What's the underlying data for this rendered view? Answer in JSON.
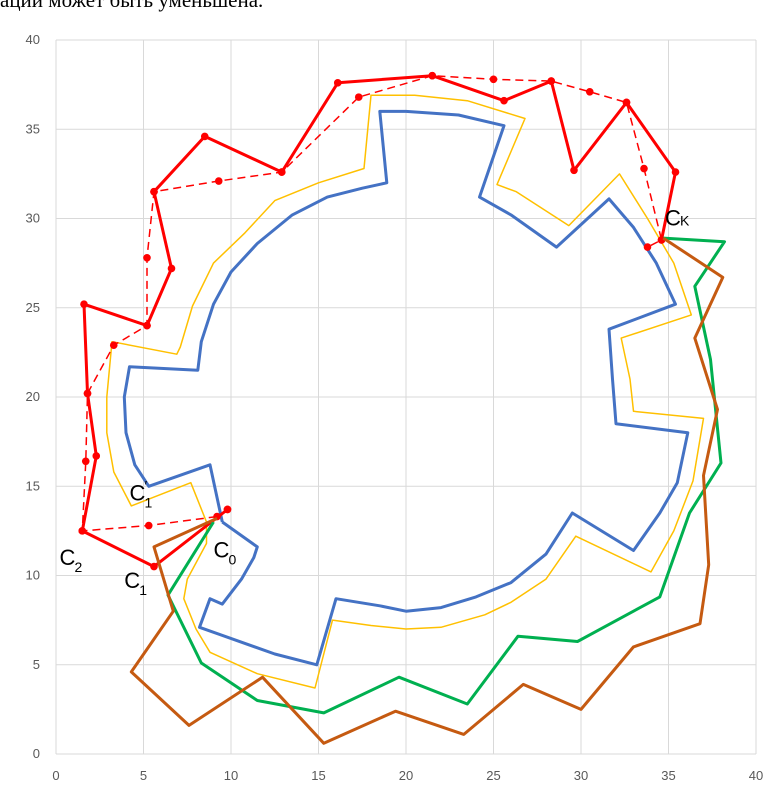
{
  "caption": "ации может быть уменьшена.",
  "chart_data": {
    "type": "line",
    "title": "",
    "xlabel": "",
    "ylabel": "",
    "xlim": [
      0,
      40
    ],
    "ylim": [
      0,
      40
    ],
    "x_ticks": [
      0,
      5,
      10,
      15,
      20,
      25,
      30,
      35,
      40
    ],
    "y_ticks": [
      0,
      5,
      10,
      15,
      20,
      25,
      30,
      35,
      40
    ],
    "grid": true,
    "colors": {
      "blue": "#4472C4",
      "yellow": "#FFC000",
      "red": "#FF0000",
      "green": "#00B050",
      "brown": "#C55A11",
      "grid": "#D9D9D9"
    },
    "series": [
      {
        "key": "blue",
        "style": "solid",
        "points": [
          [
            9.5,
            13.0
          ],
          [
            11.5,
            11.6
          ],
          [
            11.3,
            11.0
          ],
          [
            10.6,
            9.8
          ],
          [
            9.5,
            8.4
          ],
          [
            8.8,
            8.7
          ],
          [
            8.2,
            7.1
          ],
          [
            12.5,
            5.6
          ],
          [
            14.9,
            5.0
          ],
          [
            16.0,
            8.7
          ],
          [
            18.5,
            8.3
          ],
          [
            20.0,
            8.0
          ],
          [
            22.0,
            8.2
          ],
          [
            24.0,
            8.8
          ],
          [
            26.0,
            9.6
          ],
          [
            28.0,
            11.2
          ],
          [
            29.5,
            13.5
          ],
          [
            33.0,
            11.4
          ],
          [
            34.5,
            13.5
          ],
          [
            35.5,
            15.2
          ],
          [
            36.1,
            18.0
          ],
          [
            32.0,
            18.5
          ],
          [
            31.8,
            21.0
          ],
          [
            31.6,
            23.8
          ],
          [
            35.4,
            25.2
          ],
          [
            34.3,
            27.5
          ],
          [
            33.0,
            29.5
          ],
          [
            31.6,
            31.1
          ],
          [
            28.6,
            28.4
          ],
          [
            26.0,
            30.2
          ],
          [
            24.2,
            31.2
          ],
          [
            25.6,
            35.2
          ],
          [
            23.0,
            35.8
          ],
          [
            20.0,
            36.0
          ],
          [
            18.5,
            36.0
          ],
          [
            18.9,
            32.0
          ],
          [
            17.5,
            31.7
          ],
          [
            15.5,
            31.2
          ],
          [
            13.5,
            30.2
          ],
          [
            11.5,
            28.6
          ],
          [
            10.0,
            27.0
          ],
          [
            9.0,
            25.2
          ],
          [
            8.3,
            23.1
          ],
          [
            8.1,
            21.5
          ],
          [
            4.2,
            21.7
          ],
          [
            3.9,
            20.0
          ],
          [
            4.0,
            18.0
          ],
          [
            4.5,
            16.2
          ],
          [
            5.3,
            15.0
          ],
          [
            8.8,
            16.2
          ],
          [
            9.5,
            13.0
          ]
        ]
      },
      {
        "key": "yellow",
        "style": "solid",
        "points": [
          [
            8.6,
            13.0
          ],
          [
            8.6,
            11.8
          ],
          [
            7.5,
            9.8
          ],
          [
            7.3,
            8.7
          ],
          [
            8.0,
            7.0
          ],
          [
            8.8,
            5.7
          ],
          [
            11.5,
            4.5
          ],
          [
            14.8,
            3.7
          ],
          [
            15.8,
            7.5
          ],
          [
            18.0,
            7.2
          ],
          [
            20.0,
            7.0
          ],
          [
            22.0,
            7.1
          ],
          [
            24.5,
            7.8
          ],
          [
            26.0,
            8.5
          ],
          [
            28.0,
            9.8
          ],
          [
            29.7,
            12.2
          ],
          [
            34.0,
            10.2
          ],
          [
            35.3,
            12.5
          ],
          [
            36.4,
            15.3
          ],
          [
            37.0,
            18.8
          ],
          [
            33.0,
            19.2
          ],
          [
            32.8,
            21.0
          ],
          [
            32.3,
            23.3
          ],
          [
            36.3,
            24.6
          ],
          [
            35.3,
            27.5
          ],
          [
            33.8,
            30.0
          ],
          [
            32.2,
            32.5
          ],
          [
            29.3,
            29.6
          ],
          [
            26.3,
            31.5
          ],
          [
            25.2,
            31.9
          ],
          [
            26.8,
            35.6
          ],
          [
            23.5,
            36.6
          ],
          [
            20.5,
            36.9
          ],
          [
            18.0,
            36.9
          ],
          [
            17.6,
            32.8
          ],
          [
            15.0,
            32.0
          ],
          [
            12.5,
            31.0
          ],
          [
            10.8,
            29.2
          ],
          [
            9.0,
            27.5
          ],
          [
            7.8,
            25.1
          ],
          [
            7.1,
            22.8
          ],
          [
            6.9,
            22.4
          ],
          [
            3.2,
            23.1
          ],
          [
            2.9,
            20.0
          ],
          [
            2.9,
            18.0
          ],
          [
            3.3,
            15.8
          ],
          [
            4.3,
            13.9
          ],
          [
            7.7,
            15.2
          ],
          [
            8.6,
            13.0
          ]
        ]
      },
      {
        "key": "red",
        "style": "solid",
        "markers": true,
        "points": [
          [
            9.8,
            13.7
          ],
          [
            5.6,
            10.5
          ],
          [
            1.5,
            12.5
          ],
          [
            2.3,
            16.7
          ],
          [
            1.8,
            20.2
          ],
          [
            1.6,
            25.2
          ],
          [
            5.2,
            24.0
          ],
          [
            6.6,
            27.2
          ],
          [
            5.6,
            31.5
          ],
          [
            8.5,
            34.6
          ],
          [
            12.9,
            32.6
          ],
          [
            16.1,
            37.6
          ],
          [
            21.5,
            38.0
          ],
          [
            25.6,
            36.6
          ],
          [
            28.3,
            37.7
          ],
          [
            29.6,
            32.7
          ],
          [
            32.6,
            36.5
          ],
          [
            35.4,
            32.6
          ],
          [
            34.6,
            28.8
          ]
        ]
      },
      {
        "key": "red",
        "style": "dashed",
        "markers": true,
        "points": [
          [
            9.8,
            13.7
          ],
          [
            9.2,
            13.3
          ],
          [
            5.3,
            12.8
          ],
          [
            1.5,
            12.5
          ],
          [
            1.7,
            16.4
          ],
          [
            1.8,
            20.2
          ],
          [
            3.3,
            22.9
          ],
          [
            5.2,
            24.0
          ],
          [
            5.2,
            27.8
          ],
          [
            5.6,
            31.5
          ],
          [
            9.3,
            32.1
          ],
          [
            12.9,
            32.6
          ],
          [
            17.3,
            36.8
          ],
          [
            21.5,
            38.0
          ],
          [
            25.0,
            37.8
          ],
          [
            28.3,
            37.7
          ],
          [
            30.5,
            37.1
          ],
          [
            32.6,
            36.5
          ],
          [
            33.6,
            32.8
          ],
          [
            34.6,
            28.8
          ],
          [
            33.8,
            28.4
          ]
        ]
      },
      {
        "key": "green",
        "style": "solid",
        "points": [
          [
            9.0,
            13.0
          ],
          [
            6.4,
            8.9
          ],
          [
            8.3,
            5.1
          ],
          [
            11.5,
            3.0
          ],
          [
            15.3,
            2.3
          ],
          [
            19.6,
            4.3
          ],
          [
            23.5,
            2.8
          ],
          [
            26.4,
            6.6
          ],
          [
            29.8,
            6.3
          ],
          [
            34.5,
            8.8
          ],
          [
            36.2,
            13.5
          ],
          [
            38.0,
            16.3
          ],
          [
            37.4,
            22.1
          ],
          [
            36.5,
            26.2
          ],
          [
            38.2,
            28.7
          ],
          [
            34.7,
            28.9
          ]
        ]
      },
      {
        "key": "brown",
        "style": "solid",
        "points": [
          [
            9.2,
            13.2
          ],
          [
            5.6,
            11.6
          ],
          [
            6.7,
            8.0
          ],
          [
            4.3,
            4.6
          ],
          [
            7.6,
            1.6
          ],
          [
            11.8,
            4.3
          ],
          [
            15.3,
            0.6
          ],
          [
            19.4,
            2.4
          ],
          [
            23.3,
            1.1
          ],
          [
            26.7,
            3.9
          ],
          [
            30.0,
            2.5
          ],
          [
            33.0,
            6.0
          ],
          [
            36.8,
            7.3
          ],
          [
            37.3,
            10.6
          ],
          [
            37.0,
            15.6
          ],
          [
            37.8,
            19.3
          ],
          [
            36.5,
            23.3
          ],
          [
            38.1,
            26.7
          ],
          [
            34.7,
            28.9
          ]
        ]
      }
    ],
    "annotations": [
      {
        "main": "C",
        "sub": "K",
        "at": [
          34.8,
          29.6
        ],
        "sub_dx": 15,
        "sub_dy": 0
      },
      {
        "main": "C",
        "sub": "1",
        "prime": "′",
        "at": [
          4.2,
          14.2
        ],
        "sub_dx": 15,
        "sub_dy": 7
      },
      {
        "main": "C",
        "sub": "0",
        "at": [
          9.0,
          11.0
        ],
        "sub_dx": 15,
        "sub_dy": 7
      },
      {
        "main": "C",
        "sub": "2",
        "at": [
          0.2,
          10.6
        ],
        "sub_dx": 15,
        "sub_dy": 7
      },
      {
        "main": "C",
        "sub": "1",
        "at": [
          3.9,
          9.3
        ],
        "sub_dx": 15,
        "sub_dy": 7
      }
    ]
  }
}
